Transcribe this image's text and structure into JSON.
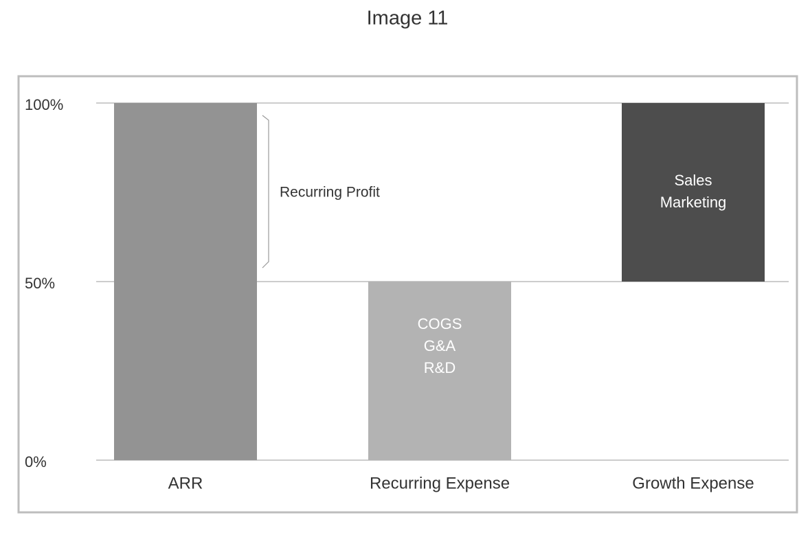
{
  "chart_data": {
    "type": "floating_bar",
    "title": "Image 11",
    "categories": [
      "ARR",
      "Recurring Expense",
      "Growth Expense"
    ],
    "values": [
      [
        0,
        100
      ],
      [
        0,
        50
      ],
      [
        50,
        100
      ]
    ],
    "colors": [
      "#939393",
      "#b3b3b3",
      "#4d4d4d"
    ],
    "bar_labels": [
      null,
      [
        "COGS",
        "G&A",
        "R&D"
      ],
      [
        "Sales",
        "Marketing"
      ]
    ],
    "annotation": "Recurring Profit",
    "ylim": [
      0,
      100
    ],
    "yticks": [
      {
        "value": 0,
        "label": "0%"
      },
      {
        "value": 50,
        "label": "50%"
      },
      {
        "value": 100,
        "label": "100%"
      }
    ],
    "grid": true
  }
}
